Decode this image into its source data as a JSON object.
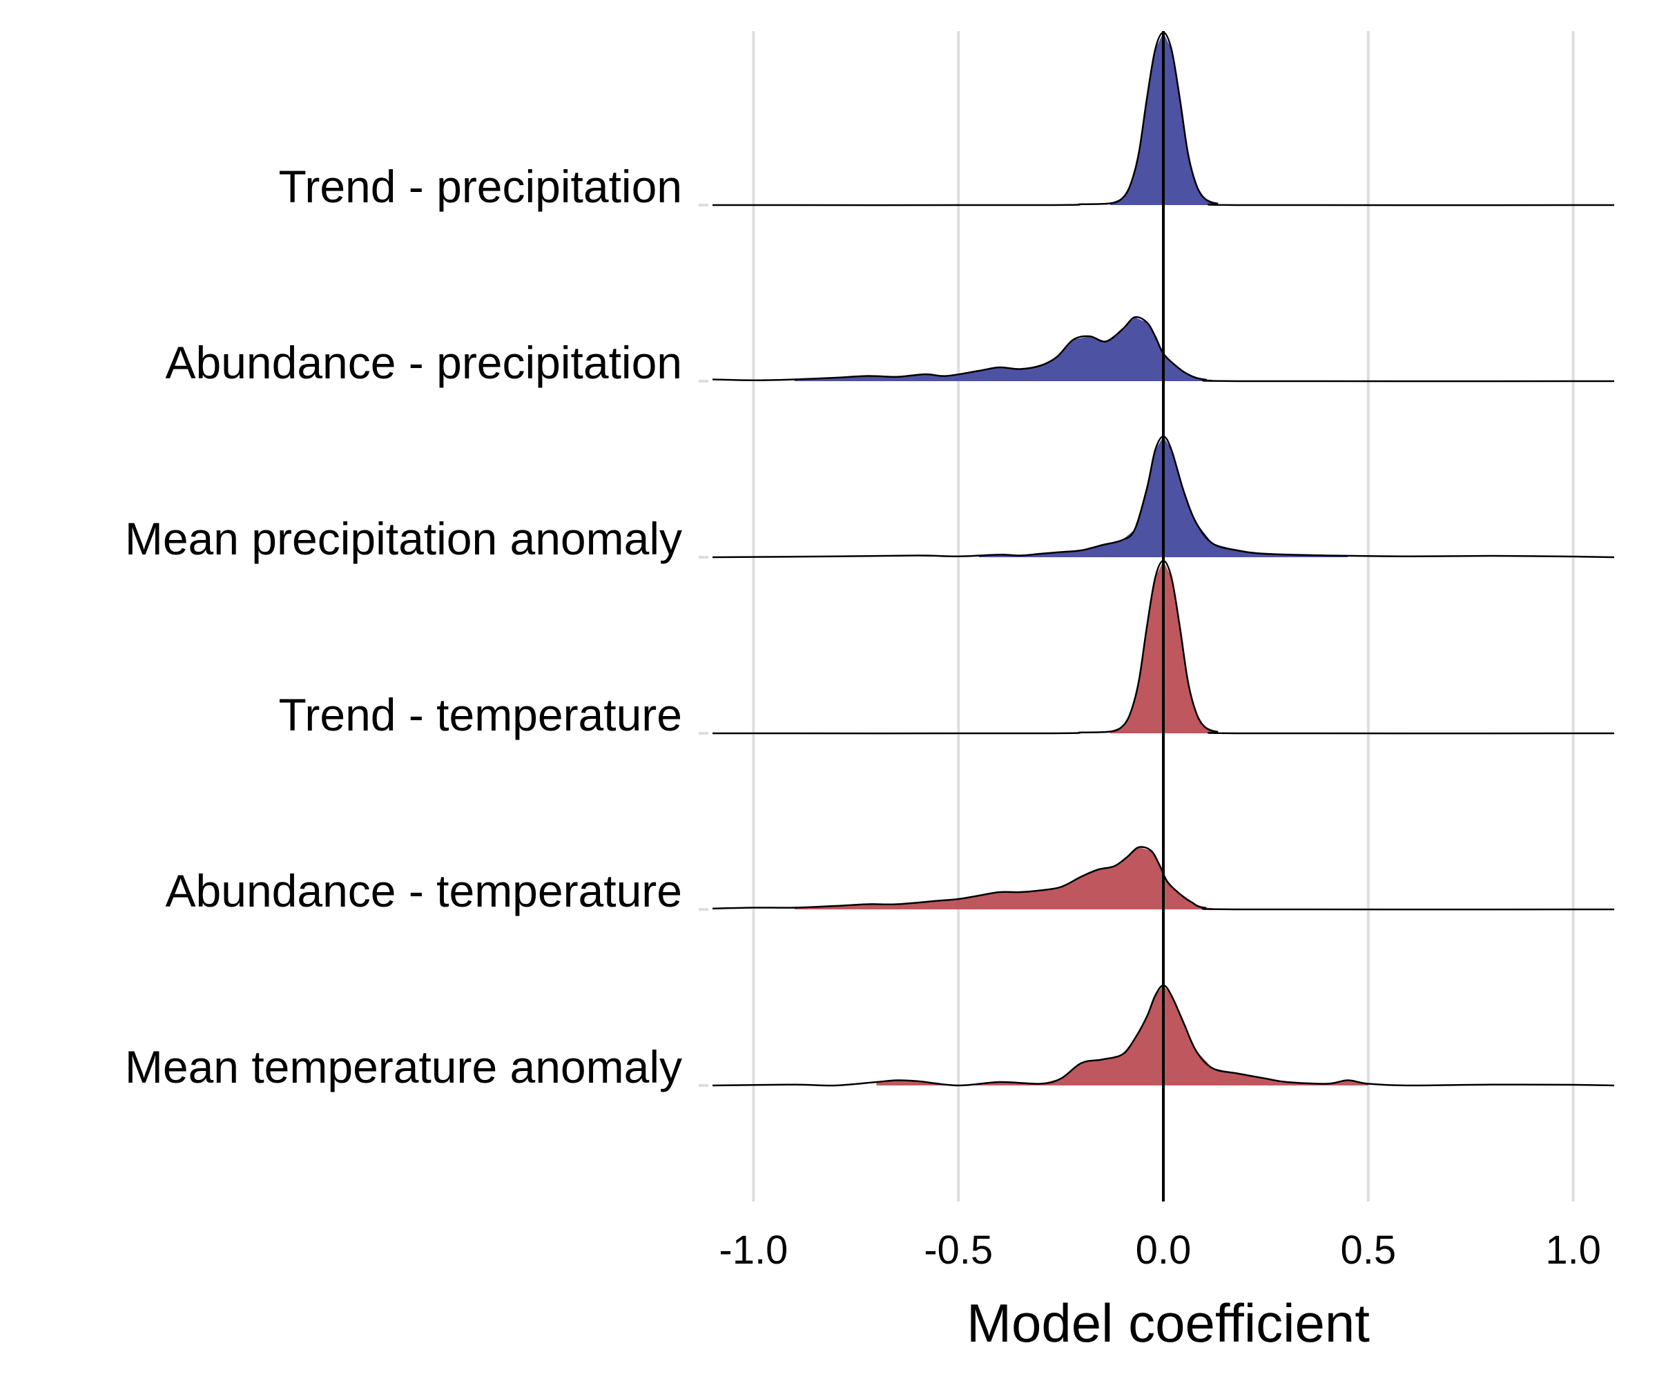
{
  "chart_data": {
    "type": "ridgeline",
    "xlabel": "Model coefficient",
    "ylabel": "",
    "xlim": [
      -1.1,
      1.1
    ],
    "x_ticks": [
      -1.0,
      -0.5,
      0.0,
      0.5,
      1.0
    ],
    "x_tick_labels": [
      "-1.0",
      "-0.5",
      "0.0",
      "0.5",
      "1.0"
    ],
    "reference_line_x": 0.0,
    "grid": "vertical",
    "colors": {
      "precipitation": "#3b3f98",
      "temperature": "#b8454c",
      "grid": "#dedede",
      "outline": "#000000"
    },
    "series": [
      {
        "name": "Trend - precipitation",
        "color_key": "precipitation",
        "x": [
          -1.1,
          -0.3,
          -0.2,
          -0.13,
          -0.1,
          -0.08,
          -0.06,
          -0.04,
          -0.02,
          0.0,
          0.02,
          0.04,
          0.06,
          0.08,
          0.1,
          0.13,
          0.2,
          1.1
        ],
        "density": [
          0,
          0,
          0.005,
          0.01,
          0.04,
          0.12,
          0.3,
          0.62,
          0.9,
          1.0,
          0.9,
          0.62,
          0.3,
          0.12,
          0.04,
          0.01,
          0,
          0
        ],
        "fill_range": [
          -0.13,
          0.13
        ]
      },
      {
        "name": "Abundance - precipitation",
        "color_key": "precipitation",
        "x": [
          -1.1,
          -1.0,
          -0.9,
          -0.8,
          -0.72,
          -0.65,
          -0.58,
          -0.53,
          -0.45,
          -0.4,
          -0.35,
          -0.3,
          -0.26,
          -0.22,
          -0.18,
          -0.14,
          -0.1,
          -0.07,
          -0.04,
          -0.02,
          0.0,
          0.03,
          0.06,
          0.1,
          0.2,
          1.1
        ],
        "density": [
          0.01,
          0.005,
          0.01,
          0.02,
          0.03,
          0.025,
          0.04,
          0.03,
          0.06,
          0.08,
          0.07,
          0.09,
          0.14,
          0.24,
          0.26,
          0.23,
          0.3,
          0.37,
          0.34,
          0.26,
          0.16,
          0.09,
          0.04,
          0.01,
          0,
          0
        ],
        "fill_range": [
          -0.9,
          0.12
        ]
      },
      {
        "name": "Mean precipitation anomaly",
        "color_key": "precipitation",
        "x": [
          -1.1,
          -0.8,
          -0.6,
          -0.5,
          -0.4,
          -0.35,
          -0.3,
          -0.25,
          -0.2,
          -0.15,
          -0.1,
          -0.07,
          -0.04,
          -0.02,
          0.0,
          0.02,
          0.05,
          0.08,
          0.12,
          0.18,
          0.25,
          0.4,
          0.6,
          0.8,
          1.0,
          1.1
        ],
        "density": [
          0,
          0.005,
          0.01,
          0.005,
          0.015,
          0.01,
          0.02,
          0.03,
          0.04,
          0.07,
          0.1,
          0.16,
          0.4,
          0.62,
          0.7,
          0.62,
          0.38,
          0.2,
          0.08,
          0.04,
          0.02,
          0.01,
          0.005,
          0.008,
          0.004,
          0
        ],
        "fill_range": [
          -0.45,
          0.45
        ]
      },
      {
        "name": "Trend - temperature",
        "color_key": "temperature",
        "x": [
          -1.1,
          -0.3,
          -0.2,
          -0.13,
          -0.1,
          -0.08,
          -0.06,
          -0.04,
          -0.02,
          0.0,
          0.02,
          0.04,
          0.06,
          0.08,
          0.1,
          0.13,
          0.2,
          1.1
        ],
        "density": [
          0,
          0,
          0.005,
          0.01,
          0.04,
          0.12,
          0.3,
          0.62,
          0.9,
          1.0,
          0.9,
          0.62,
          0.3,
          0.12,
          0.04,
          0.01,
          0,
          0
        ],
        "fill_range": [
          -0.13,
          0.13
        ]
      },
      {
        "name": "Abundance - temperature",
        "color_key": "temperature",
        "x": [
          -1.1,
          -1.0,
          -0.9,
          -0.8,
          -0.72,
          -0.65,
          -0.55,
          -0.5,
          -0.45,
          -0.4,
          -0.35,
          -0.3,
          -0.25,
          -0.2,
          -0.16,
          -0.12,
          -0.09,
          -0.06,
          -0.03,
          -0.01,
          0.01,
          0.04,
          0.07,
          0.1,
          0.2,
          1.1
        ],
        "density": [
          0.005,
          0.01,
          0.01,
          0.02,
          0.03,
          0.03,
          0.05,
          0.06,
          0.08,
          0.1,
          0.1,
          0.11,
          0.13,
          0.19,
          0.23,
          0.25,
          0.3,
          0.36,
          0.34,
          0.26,
          0.16,
          0.09,
          0.04,
          0.01,
          0,
          0
        ],
        "fill_range": [
          -0.9,
          0.12
        ]
      },
      {
        "name": "Mean temperature anomaly",
        "color_key": "temperature",
        "x": [
          -1.1,
          -0.9,
          -0.8,
          -0.7,
          -0.65,
          -0.6,
          -0.5,
          -0.4,
          -0.3,
          -0.25,
          -0.2,
          -0.15,
          -0.1,
          -0.07,
          -0.04,
          -0.02,
          0.0,
          0.02,
          0.05,
          0.08,
          0.12,
          0.18,
          0.25,
          0.3,
          0.4,
          0.45,
          0.5,
          0.6,
          0.8,
          1.0,
          1.1
        ],
        "density": [
          0,
          0.005,
          0.0,
          0.02,
          0.03,
          0.025,
          0.0,
          0.02,
          0.01,
          0.04,
          0.13,
          0.15,
          0.18,
          0.27,
          0.4,
          0.52,
          0.58,
          0.52,
          0.36,
          0.2,
          0.1,
          0.07,
          0.04,
          0.02,
          0.01,
          0.03,
          0.01,
          0.0,
          0.005,
          0.004,
          0
        ],
        "fill_range": [
          -0.7,
          0.5
        ]
      }
    ]
  }
}
